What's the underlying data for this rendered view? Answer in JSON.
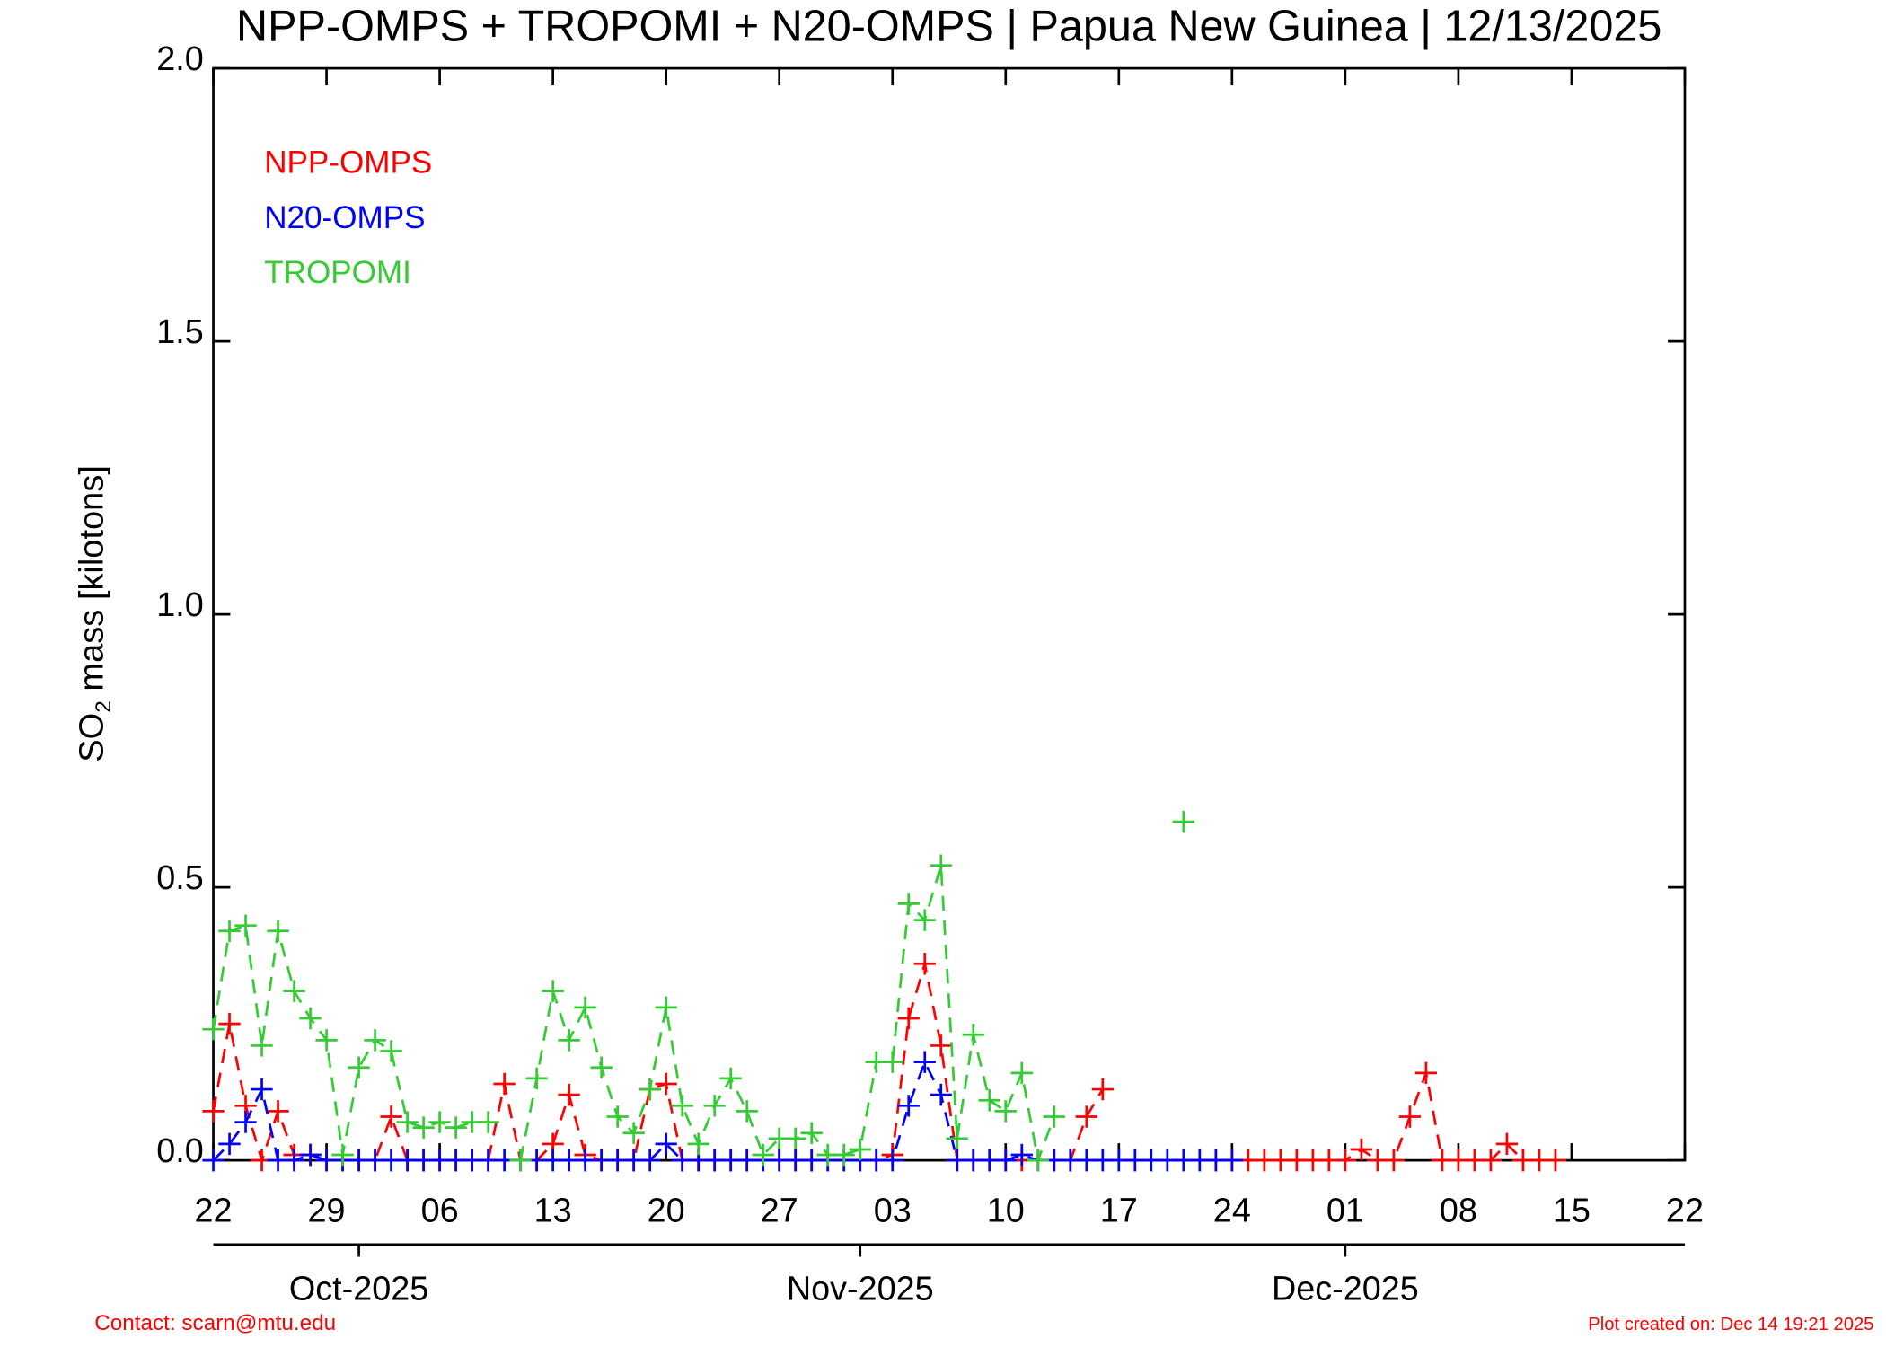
{
  "chart_data": {
    "type": "line",
    "title": "NPP-OMPS + TROPOMI + N20-OMPS | Papua New Guinea | 12/13/2025",
    "y_label": [
      "SO",
      "2",
      " mass [kilotons]"
    ],
    "x": [
      "2025-09-22",
      "2025-09-23",
      "2025-09-24",
      "2025-09-25",
      "2025-09-26",
      "2025-09-27",
      "2025-09-28",
      "2025-09-29",
      "2025-09-30",
      "2025-10-01",
      "2025-10-02",
      "2025-10-03",
      "2025-10-04",
      "2025-10-05",
      "2025-10-06",
      "2025-10-07",
      "2025-10-08",
      "2025-10-09",
      "2025-10-10",
      "2025-10-11",
      "2025-10-12",
      "2025-10-13",
      "2025-10-14",
      "2025-10-15",
      "2025-10-16",
      "2025-10-17",
      "2025-10-18",
      "2025-10-19",
      "2025-10-20",
      "2025-10-21",
      "2025-10-22",
      "2025-10-23",
      "2025-10-24",
      "2025-10-25",
      "2025-10-26",
      "2025-10-27",
      "2025-10-28",
      "2025-10-29",
      "2025-10-30",
      "2025-10-31",
      "2025-11-01",
      "2025-11-02",
      "2025-11-03",
      "2025-11-04",
      "2025-11-05",
      "2025-11-06",
      "2025-11-07",
      "2025-11-08",
      "2025-11-09",
      "2025-11-10",
      "2025-11-11",
      "2025-11-12",
      "2025-11-13",
      "2025-11-14",
      "2025-11-15",
      "2025-11-16",
      "2025-11-17",
      "2025-11-18",
      "2025-11-19",
      "2025-11-20",
      "2025-11-21",
      "2025-11-22",
      "2025-11-23",
      "2025-11-24",
      "2025-11-25",
      "2025-11-26",
      "2025-11-27",
      "2025-11-28",
      "2025-11-29",
      "2025-11-30",
      "2025-12-01",
      "2025-12-02",
      "2025-12-03",
      "2025-12-04",
      "2025-12-05",
      "2025-12-06",
      "2025-12-07",
      "2025-12-08",
      "2025-12-09",
      "2025-12-10",
      "2025-12-11",
      "2025-12-12",
      "2025-12-13",
      "2025-12-14"
    ],
    "series": [
      {
        "name": "NPP-OMPS",
        "color": "#ff0000",
        "values": [
          0.09,
          0.25,
          0.1,
          0,
          0.09,
          0.01,
          0.01,
          0,
          0,
          0,
          0,
          0.08,
          0,
          0,
          0,
          0,
          0,
          0,
          0.14,
          0,
          0,
          0.03,
          0.12,
          0.01,
          0,
          0,
          0,
          0.13,
          0.14,
          0,
          0,
          0,
          0,
          0,
          0,
          0,
          0,
          0,
          0,
          0,
          0,
          0,
          0.01,
          0.26,
          0.36,
          0.21,
          0,
          0,
          0,
          0,
          0,
          0,
          0,
          0,
          0.08,
          0.13,
          null,
          null,
          null,
          null,
          null,
          null,
          0,
          0,
          0,
          0,
          0,
          0,
          0,
          0,
          0,
          0.02,
          0,
          0,
          0.08,
          0.16,
          0,
          0,
          0,
          0,
          0.03,
          0,
          0,
          0
        ]
      },
      {
        "name": "N20-OMPS",
        "color": "#0000ff",
        "values": [
          0,
          0.03,
          0.07,
          0.13,
          0,
          0,
          0.01,
          0,
          0,
          0,
          0,
          0,
          0,
          0,
          0,
          0,
          0,
          0,
          0,
          0,
          0,
          0,
          0,
          0,
          0,
          0,
          0,
          0,
          0.03,
          0,
          0,
          0,
          0,
          0,
          0,
          0,
          0,
          0,
          0,
          0,
          0,
          0,
          0,
          0.1,
          0.18,
          0.12,
          0,
          0,
          0,
          0,
          0.01,
          0,
          0,
          0,
          0,
          0,
          0,
          0,
          0,
          0,
          0,
          0,
          0,
          0,
          null,
          null,
          null,
          null,
          null,
          null,
          null,
          null,
          null,
          null,
          null,
          null,
          null,
          null,
          null,
          null,
          null,
          null,
          null,
          null
        ]
      },
      {
        "name": "TROPOMI",
        "color": "#33cc33",
        "values": [
          0.24,
          0.42,
          0.43,
          0.21,
          0.42,
          0.31,
          0.26,
          0.22,
          0.01,
          0.17,
          0.22,
          0.2,
          0.07,
          0.06,
          0.07,
          0.06,
          0.07,
          0.07,
          null,
          0,
          0.15,
          0.31,
          0.22,
          0.28,
          0.17,
          0.08,
          0.05,
          0.13,
          0.28,
          0.1,
          0.03,
          0.1,
          0.15,
          0.09,
          0.01,
          0.04,
          0.04,
          0.05,
          0.01,
          0.01,
          0.02,
          0.18,
          0.18,
          0.47,
          0.44,
          0.54,
          0.04,
          0.23,
          0.11,
          0.09,
          0.16,
          0,
          0.08,
          null,
          null,
          null,
          null,
          null,
          null,
          null,
          0.62,
          null,
          null,
          null,
          null,
          null,
          null,
          null,
          null,
          null,
          null,
          null,
          null,
          null,
          null,
          null,
          null,
          null,
          null,
          null,
          null,
          null,
          null,
          null
        ]
      }
    ],
    "xlim": [
      "2025-09-22",
      "2025-12-22"
    ],
    "xticks": [
      {
        "value": "2025-09-22",
        "label": "22"
      },
      {
        "value": "2025-09-29",
        "label": "29"
      },
      {
        "value": "2025-10-06",
        "label": "06"
      },
      {
        "value": "2025-10-13",
        "label": "13"
      },
      {
        "value": "2025-10-20",
        "label": "20"
      },
      {
        "value": "2025-10-27",
        "label": "27"
      },
      {
        "value": "2025-11-03",
        "label": "03"
      },
      {
        "value": "2025-11-10",
        "label": "10"
      },
      {
        "value": "2025-11-17",
        "label": "17"
      },
      {
        "value": "2025-11-24",
        "label": "24"
      },
      {
        "value": "2025-12-01",
        "label": "01"
      },
      {
        "value": "2025-12-08",
        "label": "08"
      },
      {
        "value": "2025-12-15",
        "label": "15"
      },
      {
        "value": "2025-12-22",
        "label": "22"
      }
    ],
    "month_ticks": [
      {
        "value": "2025-10-01",
        "label": "Oct-2025"
      },
      {
        "value": "2025-11-01",
        "label": "Nov-2025"
      },
      {
        "value": "2025-12-01",
        "label": "Dec-2025"
      }
    ],
    "ylim": [
      0,
      2
    ],
    "yticks": [
      {
        "value": 0,
        "label": "0.0"
      },
      {
        "value": 0.5,
        "label": "0.5"
      },
      {
        "value": 1,
        "label": "1.0"
      },
      {
        "value": 1.5,
        "label": "1.5"
      },
      {
        "value": 2,
        "label": "2.0"
      }
    ],
    "contact": "Contact: scarn@mtu.edu",
    "created": "Plot created on: Dec 14 19:21 2025"
  }
}
